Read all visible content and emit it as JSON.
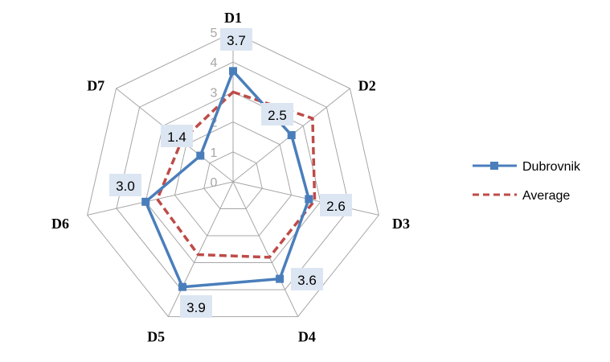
{
  "chart_data": {
    "type": "radar",
    "categories": [
      "D1",
      "D2",
      "D3",
      "D4",
      "D5",
      "D6",
      "D7"
    ],
    "rlim": [
      0,
      5
    ],
    "ticks": [
      "0",
      "1",
      "2",
      "3",
      "4",
      "5"
    ],
    "grid": true,
    "legend": "right",
    "series": [
      {
        "name": "Dubrovnik",
        "values": [
          3.7,
          2.5,
          2.6,
          3.6,
          3.9,
          3.0,
          1.4
        ],
        "labels": [
          "3.7",
          "2.5",
          "2.6",
          "3.6",
          "3.9",
          "3.0",
          "1.4"
        ],
        "color": "#4a7ebb",
        "style": "solid",
        "marker": "square"
      },
      {
        "name": "Average",
        "values": [
          3.0,
          3.4,
          2.8,
          2.8,
          2.7,
          2.6,
          2.2
        ],
        "color": "#be4b48",
        "style": "dashed",
        "marker": "none"
      }
    ]
  }
}
